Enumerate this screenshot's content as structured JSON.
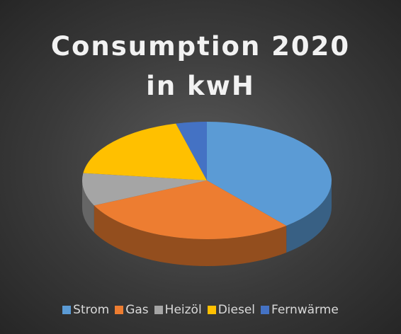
{
  "chart_data": {
    "type": "pie3d",
    "title": "Consumption 2020 in kwH",
    "categories": [
      "Strom",
      "Gas",
      "Heizöl",
      "Diesel",
      "Fernwärme"
    ],
    "values": [
      39,
      29,
      9,
      19,
      4
    ],
    "colors": [
      "#5b9bd5",
      "#ed7d31",
      "#a5a5a5",
      "#ffc000",
      "#4472c4"
    ],
    "legend": "bottom"
  }
}
